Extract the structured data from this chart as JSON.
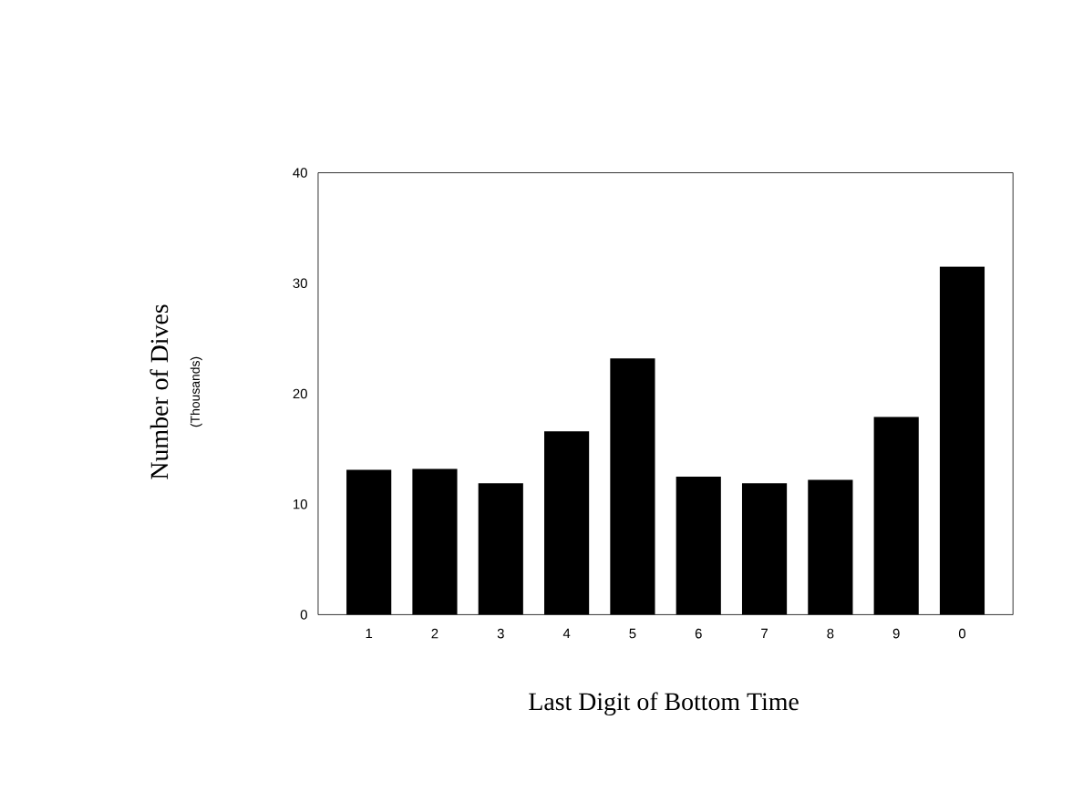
{
  "chart_data": {
    "type": "bar",
    "xlabel": "Last Digit of Bottom Time",
    "ylabel": "Number of Dives",
    "annotations": [
      "(Thousands)"
    ],
    "categories": [
      "1",
      "2",
      "3",
      "4",
      "5",
      "6",
      "7",
      "8",
      "9",
      "0"
    ],
    "values": [
      13.1,
      13.2,
      11.9,
      16.6,
      23.2,
      12.5,
      11.9,
      12.2,
      17.9,
      31.5
    ],
    "color": "#000000",
    "ylim": [
      0,
      40
    ],
    "yticks": [
      0,
      10,
      20,
      30,
      40
    ],
    "grid": false
  }
}
